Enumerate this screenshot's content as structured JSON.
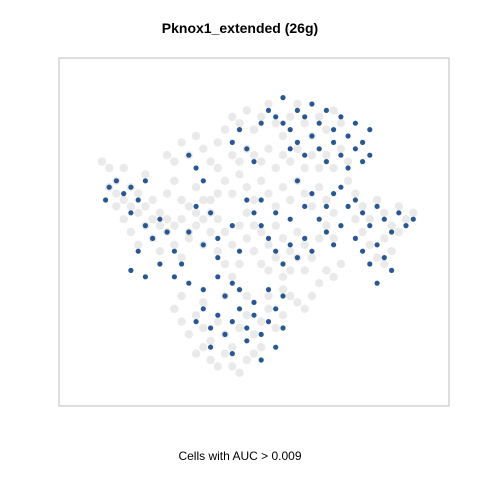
{
  "chart_data": {
    "type": "scatter",
    "title": "Pknox1_extended (26g)",
    "xlabel": "Cells with AUC > 0.009",
    "ylabel": "",
    "xlim": [
      0,
      100
    ],
    "ylim": [
      0,
      100
    ],
    "grid": false,
    "legend": "none",
    "colors": {
      "background_cells": "#d9d9d9",
      "highlight_cells": "#1f4e8c",
      "frame": "#bdbdbd"
    },
    "series": [
      {
        "role": "background",
        "points": [
          [
            8,
            72
          ],
          [
            10,
            70
          ],
          [
            12,
            66
          ],
          [
            14,
            70
          ],
          [
            16,
            64
          ],
          [
            18,
            62
          ],
          [
            20,
            68
          ],
          [
            22,
            60
          ],
          [
            24,
            56
          ],
          [
            26,
            62
          ],
          [
            28,
            66
          ],
          [
            30,
            60
          ],
          [
            32,
            58
          ],
          [
            34,
            64
          ],
          [
            36,
            60
          ],
          [
            38,
            56
          ],
          [
            40,
            62
          ],
          [
            12,
            58
          ],
          [
            14,
            54
          ],
          [
            16,
            50
          ],
          [
            18,
            46
          ],
          [
            20,
            52
          ],
          [
            22,
            48
          ],
          [
            24,
            44
          ],
          [
            26,
            50
          ],
          [
            28,
            46
          ],
          [
            30,
            42
          ],
          [
            32,
            48
          ],
          [
            34,
            52
          ],
          [
            36,
            46
          ],
          [
            38,
            50
          ],
          [
            40,
            44
          ],
          [
            42,
            40
          ],
          [
            26,
            74
          ],
          [
            28,
            72
          ],
          [
            30,
            78
          ],
          [
            32,
            74
          ],
          [
            34,
            80
          ],
          [
            36,
            76
          ],
          [
            38,
            72
          ],
          [
            40,
            78
          ],
          [
            42,
            82
          ],
          [
            44,
            86
          ],
          [
            46,
            84
          ],
          [
            48,
            88
          ],
          [
            50,
            82
          ],
          [
            52,
            86
          ],
          [
            54,
            90
          ],
          [
            56,
            84
          ],
          [
            58,
            80
          ],
          [
            60,
            86
          ],
          [
            62,
            90
          ],
          [
            64,
            84
          ],
          [
            66,
            80
          ],
          [
            68,
            86
          ],
          [
            70,
            82
          ],
          [
            72,
            88
          ],
          [
            74,
            84
          ],
          [
            40,
            70
          ],
          [
            42,
            66
          ],
          [
            44,
            62
          ],
          [
            46,
            68
          ],
          [
            48,
            64
          ],
          [
            50,
            60
          ],
          [
            52,
            66
          ],
          [
            54,
            62
          ],
          [
            56,
            58
          ],
          [
            58,
            64
          ],
          [
            60,
            60
          ],
          [
            62,
            66
          ],
          [
            64,
            62
          ],
          [
            66,
            58
          ],
          [
            68,
            64
          ],
          [
            70,
            60
          ],
          [
            72,
            56
          ],
          [
            40,
            54
          ],
          [
            42,
            50
          ],
          [
            44,
            46
          ],
          [
            46,
            52
          ],
          [
            48,
            48
          ],
          [
            50,
            44
          ],
          [
            52,
            50
          ],
          [
            54,
            46
          ],
          [
            56,
            52
          ],
          [
            58,
            48
          ],
          [
            60,
            44
          ],
          [
            62,
            50
          ],
          [
            64,
            46
          ],
          [
            66,
            42
          ],
          [
            68,
            48
          ],
          [
            70,
            52
          ],
          [
            72,
            48
          ],
          [
            48,
            56
          ],
          [
            50,
            52
          ],
          [
            52,
            40
          ],
          [
            54,
            38
          ],
          [
            56,
            42
          ],
          [
            58,
            36
          ],
          [
            46,
            40
          ],
          [
            44,
            36
          ],
          [
            60,
            38
          ],
          [
            62,
            42
          ],
          [
            64,
            38
          ],
          [
            76,
            66
          ],
          [
            78,
            62
          ],
          [
            80,
            58
          ],
          [
            82,
            54
          ],
          [
            84,
            60
          ],
          [
            86,
            56
          ],
          [
            88,
            52
          ],
          [
            90,
            58
          ],
          [
            92,
            54
          ],
          [
            94,
            56
          ],
          [
            80,
            50
          ],
          [
            82,
            46
          ],
          [
            84,
            42
          ],
          [
            86,
            48
          ],
          [
            88,
            44
          ],
          [
            90,
            50
          ],
          [
            86,
            40
          ],
          [
            78,
            54
          ],
          [
            28,
            26
          ],
          [
            30,
            22
          ],
          [
            32,
            18
          ],
          [
            34,
            24
          ],
          [
            36,
            20
          ],
          [
            38,
            16
          ],
          [
            40,
            22
          ],
          [
            42,
            18
          ],
          [
            44,
            14
          ],
          [
            46,
            20
          ],
          [
            48,
            24
          ],
          [
            50,
            18
          ],
          [
            52,
            22
          ],
          [
            54,
            26
          ],
          [
            56,
            20
          ],
          [
            58,
            24
          ],
          [
            30,
            30
          ],
          [
            36,
            28
          ],
          [
            42,
            30
          ],
          [
            48,
            30
          ],
          [
            54,
            30
          ],
          [
            38,
            10
          ],
          [
            40,
            8
          ],
          [
            42,
            12
          ],
          [
            44,
            8
          ],
          [
            46,
            6
          ],
          [
            48,
            10
          ],
          [
            36,
            14
          ],
          [
            50,
            12
          ],
          [
            34,
            12
          ],
          [
            52,
            14
          ],
          [
            10,
            64
          ],
          [
            12,
            62
          ],
          [
            14,
            60
          ],
          [
            16,
            58
          ],
          [
            18,
            56
          ],
          [
            20,
            58
          ],
          [
            22,
            54
          ],
          [
            24,
            52
          ],
          [
            26,
            54
          ],
          [
            28,
            52
          ],
          [
            30,
            54
          ],
          [
            32,
            50
          ],
          [
            34,
            56
          ],
          [
            36,
            54
          ],
          [
            38,
            60
          ],
          [
            44,
            74
          ],
          [
            46,
            72
          ],
          [
            48,
            76
          ],
          [
            50,
            74
          ],
          [
            52,
            72
          ],
          [
            54,
            76
          ],
          [
            56,
            70
          ],
          [
            58,
            74
          ],
          [
            60,
            72
          ],
          [
            62,
            76
          ],
          [
            64,
            70
          ],
          [
            66,
            74
          ],
          [
            68,
            70
          ],
          [
            70,
            74
          ],
          [
            72,
            70
          ],
          [
            74,
            76
          ],
          [
            76,
            72
          ],
          [
            60,
            30
          ],
          [
            62,
            28
          ],
          [
            64,
            26
          ],
          [
            66,
            30
          ],
          [
            58,
            32
          ],
          [
            68,
            34
          ],
          [
            70,
            38
          ],
          [
            72,
            36
          ],
          [
            74,
            40
          ]
        ]
      },
      {
        "role": "highlight",
        "points": [
          [
            10,
            64
          ],
          [
            12,
            66
          ],
          [
            14,
            62
          ],
          [
            9,
            60
          ],
          [
            16,
            64
          ],
          [
            18,
            60
          ],
          [
            20,
            66
          ],
          [
            16,
            56
          ],
          [
            20,
            52
          ],
          [
            22,
            48
          ],
          [
            18,
            44
          ],
          [
            24,
            54
          ],
          [
            26,
            50
          ],
          [
            28,
            44
          ],
          [
            30,
            40
          ],
          [
            32,
            50
          ],
          [
            36,
            46
          ],
          [
            40,
            42
          ],
          [
            38,
            56
          ],
          [
            34,
            58
          ],
          [
            16,
            38
          ],
          [
            20,
            36
          ],
          [
            24,
            40
          ],
          [
            28,
            36
          ],
          [
            32,
            34
          ],
          [
            36,
            32
          ],
          [
            40,
            36
          ],
          [
            44,
            34
          ],
          [
            32,
            74
          ],
          [
            34,
            70
          ],
          [
            36,
            66
          ],
          [
            46,
            82
          ],
          [
            44,
            78
          ],
          [
            48,
            76
          ],
          [
            50,
            72
          ],
          [
            52,
            84
          ],
          [
            54,
            88
          ],
          [
            56,
            86
          ],
          [
            58,
            92
          ],
          [
            58,
            84
          ],
          [
            60,
            82
          ],
          [
            62,
            88
          ],
          [
            64,
            86
          ],
          [
            66,
            90
          ],
          [
            68,
            84
          ],
          [
            70,
            88
          ],
          [
            72,
            82
          ],
          [
            74,
            86
          ],
          [
            76,
            80
          ],
          [
            78,
            84
          ],
          [
            80,
            78
          ],
          [
            82,
            82
          ],
          [
            60,
            76
          ],
          [
            62,
            78
          ],
          [
            64,
            74
          ],
          [
            66,
            80
          ],
          [
            68,
            76
          ],
          [
            70,
            72
          ],
          [
            72,
            78
          ],
          [
            74,
            74
          ],
          [
            76,
            70
          ],
          [
            78,
            76
          ],
          [
            80,
            72
          ],
          [
            82,
            74
          ],
          [
            62,
            66
          ],
          [
            66,
            62
          ],
          [
            70,
            58
          ],
          [
            74,
            64
          ],
          [
            78,
            60
          ],
          [
            80,
            56
          ],
          [
            82,
            52
          ],
          [
            84,
            58
          ],
          [
            86,
            54
          ],
          [
            88,
            50
          ],
          [
            90,
            56
          ],
          [
            92,
            52
          ],
          [
            94,
            54
          ],
          [
            70,
            50
          ],
          [
            72,
            46
          ],
          [
            74,
            52
          ],
          [
            78,
            48
          ],
          [
            80,
            44
          ],
          [
            82,
            40
          ],
          [
            84,
            46
          ],
          [
            86,
            42
          ],
          [
            88,
            38
          ],
          [
            84,
            34
          ],
          [
            48,
            60
          ],
          [
            50,
            56
          ],
          [
            52,
            52
          ],
          [
            54,
            48
          ],
          [
            56,
            44
          ],
          [
            58,
            40
          ],
          [
            60,
            46
          ],
          [
            62,
            42
          ],
          [
            64,
            48
          ],
          [
            66,
            44
          ],
          [
            34,
            22
          ],
          [
            36,
            26
          ],
          [
            38,
            20
          ],
          [
            40,
            24
          ],
          [
            42,
            18
          ],
          [
            44,
            22
          ],
          [
            46,
            26
          ],
          [
            48,
            20
          ],
          [
            50,
            24
          ],
          [
            52,
            18
          ],
          [
            54,
            22
          ],
          [
            56,
            26
          ],
          [
            58,
            20
          ],
          [
            42,
            30
          ],
          [
            46,
            32
          ],
          [
            50,
            28
          ],
          [
            54,
            32
          ],
          [
            58,
            30
          ],
          [
            38,
            14
          ],
          [
            44,
            12
          ],
          [
            48,
            16
          ],
          [
            52,
            10
          ],
          [
            56,
            14
          ],
          [
            40,
            48
          ],
          [
            44,
            52
          ],
          [
            46,
            44
          ],
          [
            52,
            60
          ],
          [
            56,
            56
          ],
          [
            60,
            54
          ],
          [
            64,
            58
          ],
          [
            68,
            54
          ],
          [
            72,
            62
          ],
          [
            76,
            58
          ]
        ]
      }
    ]
  }
}
